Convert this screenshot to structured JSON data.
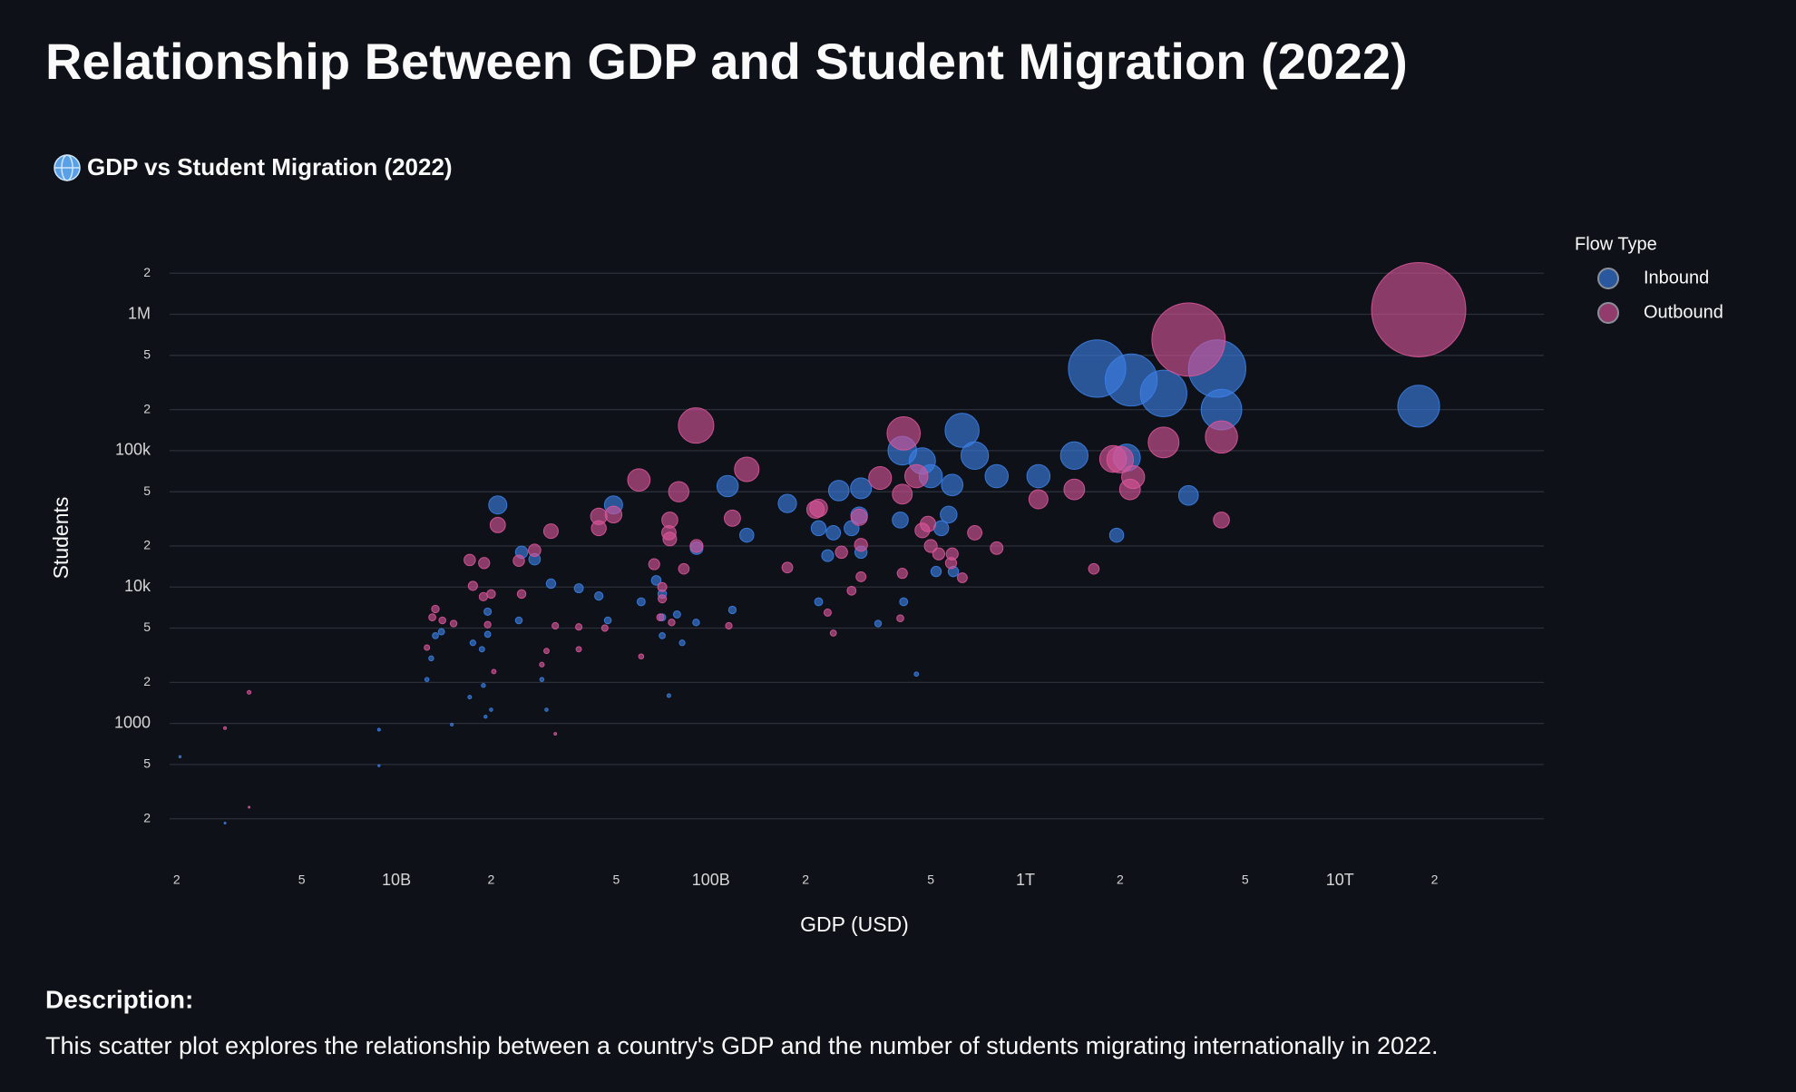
{
  "header": {
    "title": "Relationship Between GDP and Student Migration (2022)",
    "subtitle": "GDP vs Student Migration (2022)"
  },
  "description": {
    "heading": "Description:",
    "text": "This scatter plot explores the relationship between a country's GDP and the number of students migrating internationally in 2022."
  },
  "chart_data": {
    "type": "scatter",
    "x_label": "GDP (USD)",
    "y_label": "Students",
    "legend_title": "Flow Type",
    "legend": "right",
    "xscale": "log",
    "yscale": "log",
    "grid": true,
    "xlim": [
      1900000000.0,
      44500000000000.0
    ],
    "ylim": [
      100,
      4000000
    ],
    "xticks": [
      {
        "value": 2000000000.0,
        "label": "2"
      },
      {
        "value": 5000000000.0,
        "label": "5"
      },
      {
        "value": 10000000000.0,
        "label": "10B"
      },
      {
        "value": 20000000000.0,
        "label": "2"
      },
      {
        "value": 50000000000.0,
        "label": "5"
      },
      {
        "value": 100000000000.0,
        "label": "100B"
      },
      {
        "value": 200000000000.0,
        "label": "2"
      },
      {
        "value": 500000000000.0,
        "label": "5"
      },
      {
        "value": 1000000000000.0,
        "label": "1T"
      },
      {
        "value": 2000000000000.0,
        "label": "2"
      },
      {
        "value": 5000000000000.0,
        "label": "5"
      },
      {
        "value": 10000000000000.0,
        "label": "10T"
      },
      {
        "value": 20000000000000.0,
        "label": "2"
      }
    ],
    "yticks": [
      {
        "value": 200,
        "label": "2"
      },
      {
        "value": 500,
        "label": "5"
      },
      1000,
      {
        "value": 2000,
        "label": "2"
      },
      {
        "value": 5000,
        "label": "5"
      },
      {
        "value": 10000,
        "label": "10k"
      },
      {
        "value": 20000,
        "label": "2"
      },
      {
        "value": 50000,
        "label": "5"
      },
      {
        "value": 100000,
        "label": "100k"
      },
      {
        "value": 200000,
        "label": "2"
      },
      {
        "value": 500000,
        "label": "5"
      },
      {
        "value": 1000000,
        "label": "1M"
      },
      {
        "value": 2000000,
        "label": "2"
      }
    ],
    "series": [
      {
        "name": "Inbound",
        "color": "#3b7fe6",
        "x": [
          1690000000000.0,
          2170000000000.0,
          2750000000000.0,
          4070000000000.0,
          4200000000000.0,
          17800000000000.0,
          629000000000.0,
          690000000000.0,
          406000000000.0,
          470000000000.0,
          500000000000.0,
          810000000000.0,
          1100000000000.0,
          1430000000000.0,
          2100000000000.0,
          3300000000000.0,
          1950000000000.0,
          585000000000.0,
          570000000000.0,
          540000000000.0,
          400000000000.0,
          520000000000.0,
          590000000000.0,
          410000000000.0,
          450000000000.0,
          340000000000.0,
          300000000000.0,
          255000000000.0,
          296000000000.0,
          280000000000.0,
          245000000000.0,
          220000000000.0,
          235000000000.0,
          300000000000.0,
          220000000000.0,
          175000000000.0,
          130000000000.0,
          113000000000.0,
          117000000000.0,
          89700000000.0,
          90000000000.0,
          81000000000.0,
          73500000000.0,
          78000000000.0,
          70000000000.0,
          70000000000.0,
          67000000000.0,
          70000000000.0,
          60000000000.0,
          49000000000.0,
          47000000000.0,
          44000000000.0,
          38000000000.0,
          31000000000.0,
          27500000000.0,
          25000000000.0,
          21000000000.0,
          24500000000.0,
          19500000000.0,
          19500000000.0,
          18700000000.0,
          17500000000.0,
          13900000000.0,
          13300000000.0,
          12900000000.0,
          12500000000.0,
          17100000000.0,
          18900000000.0,
          19200000000.0,
          20000000000.0,
          29000000000.0,
          30000000000.0,
          15000000000.0,
          8800000000.0,
          8800000000.0,
          2850000000.0,
          2050000000.0
        ],
        "values": [
          400000,
          330000,
          263000,
          400000,
          200000,
          212000,
          141000,
          92000,
          100000,
          84000,
          65000,
          65000,
          65000,
          92000,
          89000,
          47000,
          24000,
          56000,
          34000,
          27000,
          31000,
          13000,
          13000,
          7800,
          2300,
          5400,
          53000,
          51000,
          33600,
          27000,
          25000,
          27000,
          17000,
          18000,
          7800,
          41000,
          24000,
          55000,
          6800,
          5500,
          19300,
          3900,
          1600,
          6300,
          6000,
          4400,
          11200,
          8900,
          7800,
          40000,
          5700,
          8600,
          9800,
          10600,
          16000,
          18000,
          40000,
          5700,
          6600,
          4500,
          3500,
          3900,
          4700,
          4400,
          3000,
          2100,
          1560,
          1900,
          1120,
          1260,
          2100,
          1260,
          980,
          900,
          490,
          186,
          570
        ]
      },
      {
        "name": "Outbound",
        "color": "#d9559a",
        "x": [
          17800000000000.0,
          3300000000000.0,
          2750000000000.0,
          4200000000000.0,
          1900000000000.0,
          2000000000000.0,
          2200000000000.0,
          2150000000000.0,
          1430000000000.0,
          1100000000000.0,
          1650000000000.0,
          4200000000000.0,
          410000000000.0,
          450000000000.0,
          345000000000.0,
          406000000000.0,
          490000000000.0,
          470000000000.0,
          500000000000.0,
          530000000000.0,
          585000000000.0,
          580000000000.0,
          630000000000.0,
          690000000000.0,
          810000000000.0,
          406000000000.0,
          400000000000.0,
          300000000000.0,
          300000000000.0,
          296000000000.0,
          280000000000.0,
          220000000000.0,
          215000000000.0,
          260000000000.0,
          235000000000.0,
          245000000000.0,
          130000000000.0,
          89700000000.0,
          79000000000.0,
          117000000000.0,
          175000000000.0,
          114000000000.0,
          59000000000.0,
          44000000000.0,
          49000000000.0,
          44000000000.0,
          74000000000.0,
          73500000000.0,
          74000000000.0,
          90000000000.0,
          82000000000.0,
          66000000000.0,
          70000000000.0,
          70000000000.0,
          69000000000.0,
          75000000000.0,
          60000000000.0,
          46000000000.0,
          38000000000.0,
          38000000000.0,
          32000000000.0,
          30000000000.0,
          29000000000.0,
          32000000000.0,
          31000000000.0,
          27500000000.0,
          24500000000.0,
          21000000000.0,
          25000000000.0,
          17100000000.0,
          19000000000.0,
          17500000000.0,
          18900000000.0,
          20000000000.0,
          19500000000.0,
          20400000000.0,
          13300000000.0,
          13000000000.0,
          14000000000.0,
          15200000000.0,
          12500000000.0,
          3400000000.0,
          2850000000.0,
          3400000000.0
        ],
        "values": [
          1080000,
          653000,
          115000,
          126000,
          87000,
          86000,
          64000,
          52000,
          52000,
          44000,
          13600,
          31000,
          134000,
          65000,
          63000,
          48000,
          29000,
          26000,
          20000,
          17500,
          17500,
          15000,
          11700,
          25000,
          19300,
          12600,
          5900,
          11900,
          20400,
          32500,
          9400,
          38000,
          37000,
          18000,
          6500,
          4600,
          73000,
          153000,
          50000,
          32000,
          13900,
          5200,
          61000,
          33000,
          34000,
          27000,
          31000,
          25000,
          22500,
          20000,
          13600,
          14700,
          10000,
          8200,
          6000,
          5500,
          3100,
          5000,
          5100,
          3500,
          5200,
          3400,
          2700,
          840,
          25700,
          18600,
          15600,
          28500,
          8900,
          15800,
          15000,
          10200,
          8500,
          8900,
          5300,
          2400,
          6900,
          6000,
          5700,
          5400,
          3600,
          1690,
          925,
          243
        ]
      }
    ]
  }
}
